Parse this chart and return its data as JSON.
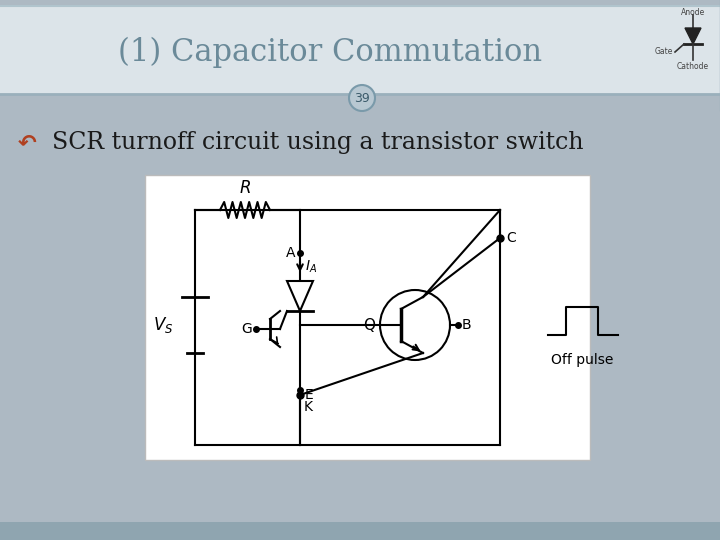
{
  "title": "(1) Capacitor Commutation",
  "slide_number": "39",
  "subtitle": "SCR turnoff circuit using a transistor switch",
  "bg_color": "#adb9c3",
  "header_bg": "#dce4e9",
  "bottom_bar_color": "#8fa5b0",
  "white_box_color": "#ffffff",
  "title_color": "#6b8a99",
  "circuit_bg": "#ffffff",
  "header_line_color": "#9ab0bc",
  "number_circle_bg": "#b8c8d2",
  "number_circle_edge": "#7a9aaa"
}
